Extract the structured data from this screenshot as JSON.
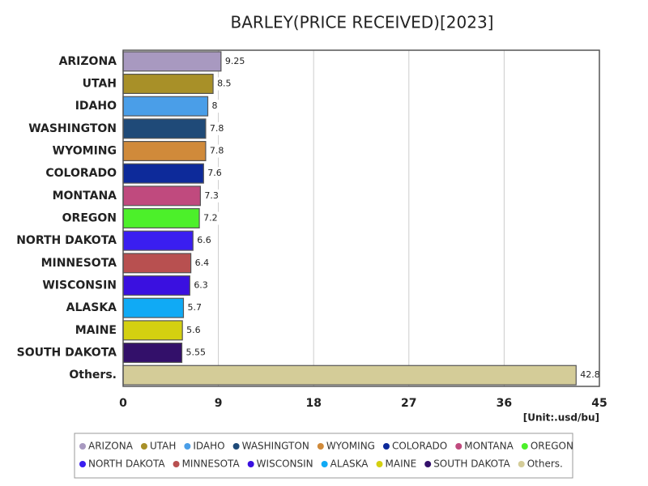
{
  "chart_data": {
    "type": "bar",
    "orientation": "horizontal",
    "title": "BARLEY(PRICE RECEIVED)[2023]",
    "unit_label": "[Unit:.usd/bu]",
    "categories": [
      "ARIZONA",
      "UTAH",
      "IDAHO",
      "WASHINGTON",
      "WYOMING",
      "COLORADO",
      "MONTANA",
      "OREGON",
      "NORTH DAKOTA",
      "MINNESOTA",
      "WISCONSIN",
      "ALASKA",
      "MAINE",
      "SOUTH DAKOTA",
      "Others."
    ],
    "values": [
      9.25,
      8.5,
      8,
      7.8,
      7.8,
      7.6,
      7.3,
      7.2,
      6.6,
      6.4,
      6.3,
      5.7,
      5.6,
      5.55,
      42.8
    ],
    "colors": [
      "#a899c0",
      "#a89028",
      "#4a9ee8",
      "#1f4a78",
      "#d08a3a",
      "#0d2a9a",
      "#c04a7e",
      "#4cf02a",
      "#3a1ef0",
      "#b85050",
      "#3a10e0",
      "#10aaf5",
      "#d4d010",
      "#33106a",
      "#d4cc98"
    ],
    "xlim": [
      0,
      45
    ],
    "xticks": [
      0,
      9,
      18,
      27,
      36,
      45
    ],
    "grid": true
  }
}
